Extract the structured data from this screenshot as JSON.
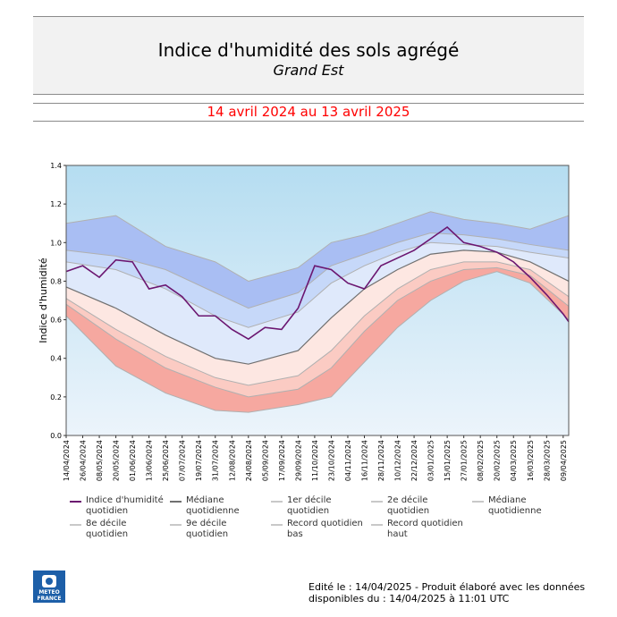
{
  "header": {
    "title": "Indice d'humidité des sols agrégé",
    "subtitle": "Grand Est",
    "period": "14 avril 2024 au 13 avril 2025"
  },
  "footer": {
    "line1": "Edité le : 14/04/2025 - Produit élaboré avec les données",
    "line2": "disponibles du : 14/04/2025 à 11:01 UTC"
  },
  "logo": {
    "line1": "METEO",
    "line2": "FRANCE",
    "icon": "meteo-france-logo"
  },
  "colors": {
    "plot_top": "#b5ddf1",
    "plot_bottom": "#ecf4fb",
    "band_blue_dark": "#a9bef3",
    "band_blue_mid": "#c6d8f9",
    "band_blue_light": "#dfe9fb",
    "band_red_light": "#fde7e2",
    "band_red_mid": "#fbcbc3",
    "band_red_dark": "#f6a8a0",
    "index_line": "#6b1670",
    "median_line": "#707070",
    "decile_line": "#b0b0b0"
  },
  "legend": [
    {
      "label": "Indice d'humidité quotidien",
      "color": "#6b1670",
      "icon": "line-swatch"
    },
    {
      "label": "Médiane quotidienne",
      "color": "#707070",
      "icon": "line-swatch"
    },
    {
      "label": "1er décile quotidien",
      "color": "#c8c8c8",
      "icon": "line-swatch"
    },
    {
      "label": "2e décile quotidien",
      "color": "#c8c8c8",
      "icon": "line-swatch"
    },
    {
      "label": "Médiane quotidienne",
      "color": "#c8c8c8",
      "icon": "line-swatch"
    },
    {
      "label": "8e décile quotidien",
      "color": "#c8c8c8",
      "icon": "line-swatch"
    },
    {
      "label": "9e décile quotidien",
      "color": "#c8c8c8",
      "icon": "line-swatch"
    },
    {
      "label": "Record quotidien bas",
      "color": "#c8c8c8",
      "icon": "line-swatch"
    },
    {
      "label": "Record quotidien haut",
      "color": "#c8c8c8",
      "icon": "line-swatch"
    }
  ],
  "chart_data": {
    "type": "area",
    "title": "Indice d'humidité des sols agrégé",
    "subtitle": "Grand Est",
    "ylabel": "Indice d'humidité",
    "xlabel": "",
    "ylim": [
      0.0,
      1.4
    ],
    "yticks": [
      "0.0",
      "0.2",
      "0.4",
      "0.6",
      "0.8",
      "1.0",
      "1.2",
      "1.4"
    ],
    "x_range": [
      "2024-04-14",
      "2025-04-13"
    ],
    "xtick_labels": [
      "14/04/2024",
      "26/04/2024",
      "08/05/2024",
      "20/05/2024",
      "01/06/2024",
      "13/06/2024",
      "25/06/2024",
      "07/07/2024",
      "19/07/2024",
      "31/07/2024",
      "12/08/2024",
      "24/08/2024",
      "05/09/2024",
      "17/09/2024",
      "29/09/2024",
      "11/10/2024",
      "23/10/2024",
      "04/11/2024",
      "16/11/2024",
      "28/11/2024",
      "10/12/2024",
      "22/12/2024",
      "03/01/2025",
      "15/01/2025",
      "27/01/2025",
      "08/02/2025",
      "20/02/2025",
      "04/03/2025",
      "16/03/2025",
      "28/03/2025",
      "09/04/2025"
    ],
    "grid": false,
    "legend_position": "bottom",
    "series": [
      {
        "name": "Record quotidien haut",
        "x": [
          "2024-04-14",
          "2024-05-20",
          "2024-06-25",
          "2024-07-31",
          "2024-08-24",
          "2024-09-29",
          "2024-10-23",
          "2024-11-16",
          "2024-12-10",
          "2025-01-03",
          "2025-01-27",
          "2025-02-20",
          "2025-03-16",
          "2025-04-13"
        ],
        "y": [
          1.1,
          1.14,
          0.98,
          0.9,
          0.8,
          0.87,
          1.0,
          1.04,
          1.1,
          1.16,
          1.12,
          1.1,
          1.07,
          1.14
        ]
      },
      {
        "name": "9e décile quotidien",
        "x": [
          "2024-04-14",
          "2024-05-20",
          "2024-06-25",
          "2024-07-31",
          "2024-08-24",
          "2024-09-29",
          "2024-10-23",
          "2024-11-16",
          "2024-12-10",
          "2025-01-03",
          "2025-01-27",
          "2025-02-20",
          "2025-03-16",
          "2025-04-13"
        ],
        "y": [
          0.96,
          0.93,
          0.86,
          0.74,
          0.66,
          0.74,
          0.88,
          0.94,
          1.0,
          1.05,
          1.04,
          1.02,
          0.99,
          0.96
        ]
      },
      {
        "name": "8e décile quotidien",
        "x": [
          "2024-04-14",
          "2024-05-20",
          "2024-06-25",
          "2024-07-31",
          "2024-08-24",
          "2024-09-29",
          "2024-10-23",
          "2024-11-16",
          "2024-12-10",
          "2025-01-03",
          "2025-01-27",
          "2025-02-20",
          "2025-03-16",
          "2025-04-13"
        ],
        "y": [
          0.9,
          0.86,
          0.76,
          0.62,
          0.56,
          0.64,
          0.79,
          0.88,
          0.95,
          1.0,
          0.99,
          0.98,
          0.95,
          0.92
        ]
      },
      {
        "name": "Médiane quotidienne",
        "x": [
          "2024-04-14",
          "2024-05-20",
          "2024-06-25",
          "2024-07-31",
          "2024-08-24",
          "2024-09-29",
          "2024-10-23",
          "2024-11-16",
          "2024-12-10",
          "2025-01-03",
          "2025-01-27",
          "2025-02-20",
          "2025-03-16",
          "2025-04-13"
        ],
        "y": [
          0.77,
          0.66,
          0.52,
          0.4,
          0.37,
          0.44,
          0.61,
          0.76,
          0.86,
          0.94,
          0.96,
          0.95,
          0.9,
          0.8
        ]
      },
      {
        "name": "2e décile quotidien",
        "x": [
          "2024-04-14",
          "2024-05-20",
          "2024-06-25",
          "2024-07-31",
          "2024-08-24",
          "2024-09-29",
          "2024-10-23",
          "2024-11-16",
          "2024-12-10",
          "2025-01-03",
          "2025-01-27",
          "2025-02-20",
          "2025-03-16",
          "2025-04-13"
        ],
        "y": [
          0.71,
          0.55,
          0.41,
          0.3,
          0.26,
          0.31,
          0.44,
          0.62,
          0.76,
          0.86,
          0.9,
          0.9,
          0.86,
          0.72
        ]
      },
      {
        "name": "1er décile quotidien",
        "x": [
          "2024-04-14",
          "2024-05-20",
          "2024-06-25",
          "2024-07-31",
          "2024-08-24",
          "2024-09-29",
          "2024-10-23",
          "2024-11-16",
          "2024-12-10",
          "2025-01-03",
          "2025-01-27",
          "2025-02-20",
          "2025-03-16",
          "2025-04-13"
        ],
        "y": [
          0.68,
          0.5,
          0.35,
          0.25,
          0.2,
          0.24,
          0.35,
          0.54,
          0.7,
          0.8,
          0.86,
          0.87,
          0.83,
          0.67
        ]
      },
      {
        "name": "Record quotidien bas",
        "x": [
          "2024-04-14",
          "2024-05-20",
          "2024-06-25",
          "2024-07-31",
          "2024-08-24",
          "2024-09-29",
          "2024-10-23",
          "2024-11-16",
          "2024-12-10",
          "2025-01-03",
          "2025-01-27",
          "2025-02-20",
          "2025-03-16",
          "2025-04-13"
        ],
        "y": [
          0.62,
          0.36,
          0.22,
          0.13,
          0.12,
          0.16,
          0.2,
          0.38,
          0.56,
          0.7,
          0.8,
          0.85,
          0.79,
          0.6
        ]
      },
      {
        "name": "Indice d'humidité quotidien",
        "x": [
          "2024-04-14",
          "2024-04-26",
          "2024-05-08",
          "2024-05-20",
          "2024-06-01",
          "2024-06-13",
          "2024-06-25",
          "2024-07-07",
          "2024-07-19",
          "2024-07-31",
          "2024-08-12",
          "2024-08-24",
          "2024-09-05",
          "2024-09-17",
          "2024-09-29",
          "2024-10-11",
          "2024-10-23",
          "2024-11-04",
          "2024-11-16",
          "2024-11-28",
          "2024-12-10",
          "2024-12-22",
          "2025-01-03",
          "2025-01-15",
          "2025-01-27",
          "2025-02-08",
          "2025-02-20",
          "2025-03-04",
          "2025-03-16",
          "2025-03-28",
          "2025-04-09",
          "2025-04-13"
        ],
        "y": [
          0.85,
          0.88,
          0.82,
          0.91,
          0.9,
          0.76,
          0.78,
          0.72,
          0.62,
          0.62,
          0.55,
          0.5,
          0.56,
          0.55,
          0.66,
          0.88,
          0.86,
          0.79,
          0.76,
          0.88,
          0.92,
          0.96,
          1.02,
          1.08,
          1.0,
          0.98,
          0.95,
          0.9,
          0.82,
          0.73,
          0.63,
          0.59
        ]
      }
    ]
  }
}
